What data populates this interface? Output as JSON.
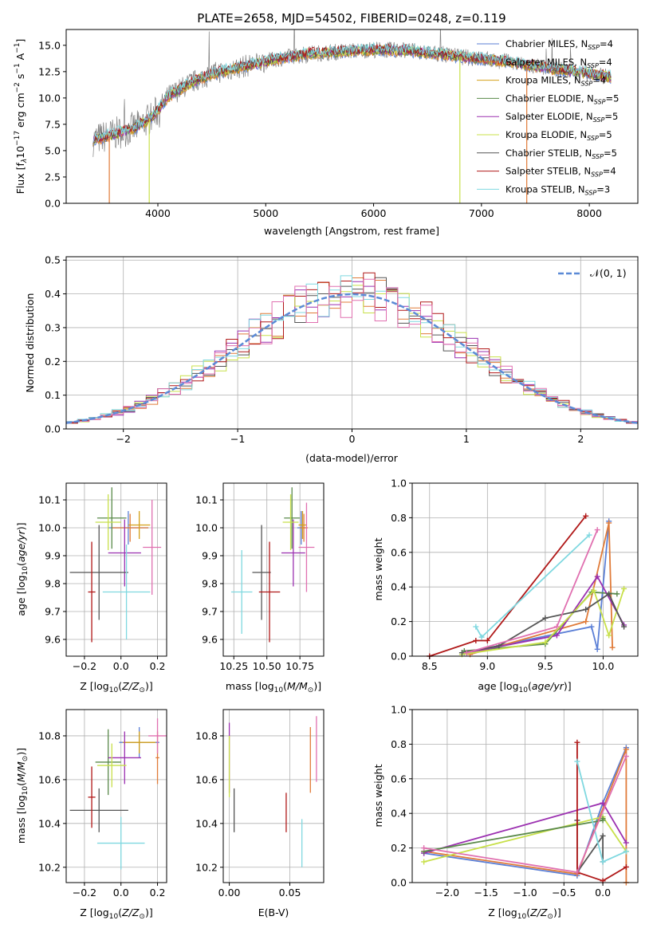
{
  "title": "PLATE=2658, MJD=54502, FIBERID=0248, z=0.119",
  "legend_models": [
    {
      "label": "Chabrier MILES, N$_{SSP}$=4",
      "color": "#5b7fd6"
    },
    {
      "label": "Salpeter MILES, N$_{SSP}$=4",
      "color": "#e07b39"
    },
    {
      "label": "Kroupa MILES, N$_{SSP}$=4",
      "color": "#d4a018"
    },
    {
      "label": "Chabrier ELODIE, N$_{SSP}$=5",
      "color": "#5a8a4a"
    },
    {
      "label": "Salpeter ELODIE, N$_{SSP}$=5",
      "color": "#9b30b0"
    },
    {
      "label": "Kroupa ELODIE, N$_{SSP}$=5",
      "color": "#c8e04a"
    },
    {
      "label": "Chabrier STELIB, N$_{SSP}$=5",
      "color": "#555555"
    },
    {
      "label": "Salpeter STELIB, N$_{SSP}$=4",
      "color": "#b01818"
    },
    {
      "label": "Kroupa STELIB, N$_{SSP}$=3",
      "color": "#7fd8e0"
    }
  ],
  "legend_text": [
    "Chabrier MILES, N",
    "Salpeter MILES, N",
    "Kroupa MILES, N",
    "Chabrier ELODIE, N",
    "Salpeter ELODIE, N",
    "Kroupa ELODIE, N",
    "Chabrier STELIB, N",
    "Salpeter STELIB, N",
    "Kroupa STELIB, N"
  ],
  "legend_sub": "SSP",
  "legend_n": [
    "=4",
    "=4",
    "=4",
    "=5",
    "=5",
    "=5",
    "=5",
    "=4",
    "=3"
  ],
  "chart_data": [
    {
      "type": "line",
      "name": "spectrum",
      "xlabel": "wavelength [Angstrom, rest frame]",
      "ylabel": "Flux [f",
      "ylabel_full": "Flux [fλ10^-17 erg cm^-2 s^-1 A^-1]",
      "xlim": [
        3150,
        8450
      ],
      "ylim": [
        0,
        16.5
      ],
      "xticks": [
        4000,
        5000,
        6000,
        7000,
        8000
      ],
      "yticks": [
        0.0,
        2.5,
        5.0,
        7.5,
        10.0,
        12.5,
        15.0
      ],
      "ytick_labels": [
        "0.0",
        "2.5",
        "5.0",
        "7.5",
        "10.0",
        "12.5",
        "15.0"
      ],
      "continuum_x": [
        3400,
        3600,
        3800,
        3950,
        4100,
        4300,
        4500,
        4800,
        5100,
        5400,
        5700,
        6000,
        6300,
        6600,
        6900,
        7200,
        7500,
        7800,
        8000,
        8200
      ],
      "continuum_y": [
        6.0,
        6.6,
        7.2,
        8.2,
        10.2,
        11.4,
        12.3,
        13.0,
        13.7,
        14.2,
        14.4,
        14.6,
        14.5,
        14.2,
        13.8,
        13.5,
        13.0,
        12.6,
        12.3,
        12.0
      ]
    },
    {
      "type": "line",
      "name": "residuals",
      "xlabel": "(data-model)/error",
      "ylabel": "Normed distribution",
      "xlim": [
        -2.5,
        2.5
      ],
      "ylim": [
        0,
        0.51
      ],
      "xticks": [
        -2,
        -1,
        0,
        1,
        2
      ],
      "xtick_labels": [
        "−2",
        "−1",
        "0",
        "1",
        "2"
      ],
      "yticks": [
        0.0,
        0.1,
        0.2,
        0.3,
        0.4,
        0.5
      ],
      "ytick_labels": [
        "0.0",
        "0.1",
        "0.2",
        "0.3",
        "0.4",
        "0.5"
      ],
      "legend": "𝒩(0, 1)",
      "normal_mu": 0,
      "normal_sigma": 1
    },
    {
      "type": "scatter",
      "name": "age-vs-Z",
      "xlabel": "Z [log",
      "ylabel": "age",
      "xlim": [
        -0.3,
        0.25
      ],
      "ylim": [
        9.54,
        10.16
      ],
      "xticks": [
        -0.2,
        0.0,
        0.2
      ],
      "xtick_labels": [
        "−0.2",
        "0.0",
        "0.2"
      ],
      "yticks": [
        9.6,
        9.7,
        9.8,
        9.9,
        10.0,
        10.1
      ],
      "ytick_labels": [
        "9.6",
        "9.7",
        "9.8",
        "9.9",
        "10.0",
        "10.1"
      ],
      "points": [
        {
          "x": 0.04,
          "y": 10.0,
          "xerr": 0.11,
          "yerr": 0.06,
          "color": "#5b7fd6"
        },
        {
          "x": 0.05,
          "y": 10.0,
          "xerr": 0.1,
          "yerr": 0.05,
          "color": "#e07b39"
        },
        {
          "x": 0.1,
          "y": 10.01,
          "xerr": 0.06,
          "yerr": 0.05,
          "color": "#d4a018"
        },
        {
          "x": -0.05,
          "y": 10.035,
          "xerr": 0.08,
          "yerr": 0.11,
          "color": "#5a8a4a"
        },
        {
          "x": 0.02,
          "y": 9.91,
          "xerr": 0.09,
          "yerr": 0.12,
          "color": "#9b30b0"
        },
        {
          "x": -0.07,
          "y": 10.02,
          "xerr": 0.07,
          "yerr": 0.1,
          "color": "#c8e04a"
        },
        {
          "x": -0.12,
          "y": 9.84,
          "xerr": 0.16,
          "yerr": 0.17,
          "color": "#555555"
        },
        {
          "x": -0.16,
          "y": 9.77,
          "xerr": 0.02,
          "yerr": 0.18,
          "color": "#b01818"
        },
        {
          "x": 0.03,
          "y": 9.77,
          "xerr": 0.13,
          "yerr": 0.17,
          "color": "#7fd8e0"
        },
        {
          "x": 0.17,
          "y": 9.93,
          "xerr": 0.05,
          "yerr": 0.17,
          "color": "#e070b0"
        }
      ]
    },
    {
      "type": "scatter",
      "name": "age-vs-mass",
      "xlabel": "mass [log",
      "xlim": [
        10.17,
        10.93
      ],
      "ylim": [
        9.54,
        10.16
      ],
      "xticks": [
        10.25,
        10.5,
        10.75
      ],
      "xtick_labels": [
        "10.25",
        "10.50",
        "10.75"
      ],
      "yticks": [
        9.6,
        9.7,
        9.8,
        9.9,
        10.0,
        10.1
      ],
      "ytick_labels": [
        "9.6",
        "9.7",
        "9.8",
        "9.9",
        "10.0",
        "10.1"
      ],
      "points": [
        {
          "x": 10.76,
          "y": 10.0,
          "xerr": 0.03,
          "yerr": 0.06,
          "color": "#5b7fd6"
        },
        {
          "x": 10.78,
          "y": 10.0,
          "xerr": 0.03,
          "yerr": 0.05,
          "color": "#e07b39"
        },
        {
          "x": 10.77,
          "y": 10.01,
          "xerr": 0.03,
          "yerr": 0.05,
          "color": "#d4a018"
        },
        {
          "x": 10.69,
          "y": 10.035,
          "xerr": 0.06,
          "yerr": 0.11,
          "color": "#5a8a4a"
        },
        {
          "x": 10.7,
          "y": 9.91,
          "xerr": 0.09,
          "yerr": 0.12,
          "color": "#9b30b0"
        },
        {
          "x": 10.68,
          "y": 10.02,
          "xerr": 0.06,
          "yerr": 0.1,
          "color": "#c8e04a"
        },
        {
          "x": 10.46,
          "y": 9.84,
          "xerr": 0.07,
          "yerr": 0.17,
          "color": "#555555"
        },
        {
          "x": 10.52,
          "y": 9.77,
          "xerr": 0.08,
          "yerr": 0.18,
          "color": "#b01818"
        },
        {
          "x": 10.31,
          "y": 9.77,
          "xerr": 0.08,
          "yerr": 0.15,
          "color": "#7fd8e0"
        },
        {
          "x": 10.8,
          "y": 9.93,
          "xerr": 0.06,
          "yerr": 0.16,
          "color": "#e070b0"
        }
      ]
    },
    {
      "type": "line",
      "name": "mass-weight-vs-age",
      "xlabel": "age",
      "ylabel": "mass weight",
      "xlim": [
        8.35,
        10.3
      ],
      "ylim": [
        0,
        1.0
      ],
      "xticks": [
        8.5,
        9.0,
        9.5,
        10.0
      ],
      "xtick_labels": [
        "8.5",
        "9.0",
        "9.5",
        "10.0"
      ],
      "yticks": [
        0.0,
        0.2,
        0.4,
        0.6,
        0.8,
        1.0
      ],
      "ytick_labels": [
        "0.0",
        "0.2",
        "0.4",
        "0.6",
        "0.8",
        "1.0"
      ],
      "series": [
        {
          "color": "#5b7fd6",
          "x": [
            8.8,
            9.9,
            9.95,
            10.05
          ],
          "y": [
            0.02,
            0.17,
            0.04,
            0.78
          ]
        },
        {
          "color": "#e07b39",
          "x": [
            8.85,
            9.85,
            10.05,
            10.08
          ],
          "y": [
            0.01,
            0.2,
            0.77,
            0.05
          ]
        },
        {
          "color": "#5a8a4a",
          "x": [
            8.8,
            9.5,
            9.9,
            10.12
          ],
          "y": [
            0.03,
            0.07,
            0.37,
            0.36
          ]
        },
        {
          "color": "#9b30b0",
          "x": [
            8.82,
            9.6,
            9.95,
            10.18
          ],
          "y": [
            0.02,
            0.12,
            0.46,
            0.18
          ]
        },
        {
          "color": "#c8e04a",
          "x": [
            8.78,
            9.5,
            9.92,
            10.05,
            10.18
          ],
          "y": [
            0.01,
            0.08,
            0.38,
            0.12,
            0.39
          ]
        },
        {
          "color": "#555555",
          "x": [
            8.78,
            9.1,
            9.5,
            9.85,
            10.05,
            10.18
          ],
          "y": [
            0.02,
            0.06,
            0.22,
            0.27,
            0.36,
            0.17
          ]
        },
        {
          "color": "#b01818",
          "x": [
            8.5,
            8.9,
            9.0,
            9.85
          ],
          "y": [
            0.0,
            0.09,
            0.09,
            0.81
          ]
        },
        {
          "color": "#7fd8e0",
          "x": [
            8.9,
            8.95,
            9.88
          ],
          "y": [
            0.17,
            0.11,
            0.7
          ]
        },
        {
          "color": "#e070b0",
          "x": [
            8.82,
            9.6,
            9.95
          ],
          "y": [
            0.02,
            0.17,
            0.73
          ]
        }
      ]
    },
    {
      "type": "scatter",
      "name": "mass-vs-Z",
      "xlabel": "Z [log",
      "ylabel": "mass [log",
      "xlim": [
        -0.3,
        0.25
      ],
      "ylim": [
        10.13,
        10.92
      ],
      "xticks": [
        -0.2,
        0.0,
        0.2
      ],
      "xtick_labels": [
        "−0.2",
        "0.0",
        "0.2"
      ],
      "yticks": [
        10.2,
        10.4,
        10.6,
        10.8
      ],
      "ytick_labels": [
        "10.2",
        "10.4",
        "10.6",
        "10.8"
      ],
      "points": [
        {
          "x": 0.1,
          "y": 10.77,
          "xerr": 0.11,
          "yerr": 0.07,
          "color": "#5b7fd6"
        },
        {
          "x": 0.2,
          "y": 10.7,
          "xerr": 0.01,
          "yerr": 0.12,
          "color": "#e07b39"
        },
        {
          "x": 0.1,
          "y": 10.77,
          "xerr": 0.09,
          "yerr": 0.05,
          "color": "#d4a018"
        },
        {
          "x": -0.07,
          "y": 10.68,
          "xerr": 0.07,
          "yerr": 0.15,
          "color": "#5a8a4a"
        },
        {
          "x": 0.02,
          "y": 10.7,
          "xerr": 0.09,
          "yerr": 0.12,
          "color": "#9b30b0"
        },
        {
          "x": -0.05,
          "y": 10.665,
          "xerr": 0.08,
          "yerr": 0.1,
          "color": "#c8e04a"
        },
        {
          "x": -0.12,
          "y": 10.46,
          "xerr": 0.16,
          "yerr": 0.1,
          "color": "#555555"
        },
        {
          "x": -0.16,
          "y": 10.52,
          "xerr": 0.02,
          "yerr": 0.14,
          "color": "#b01818"
        },
        {
          "x": 0.0,
          "y": 10.31,
          "xerr": 0.13,
          "yerr": 0.12,
          "color": "#7fd8e0"
        },
        {
          "x": 0.2,
          "y": 10.8,
          "xerr": 0.05,
          "yerr": 0.08,
          "color": "#e070b0"
        }
      ]
    },
    {
      "type": "scatter",
      "name": "mass-vs-EBV",
      "xlabel": "E(B-V)",
      "xlim": [
        -0.005,
        0.078
      ],
      "ylim": [
        10.13,
        10.92
      ],
      "xticks": [
        0.0,
        0.05
      ],
      "xtick_labels": [
        "0.00",
        "0.05"
      ],
      "yticks": [
        10.2,
        10.4,
        10.6,
        10.8
      ],
      "ytick_labels": [
        "10.2",
        "10.4",
        "10.6",
        "10.8"
      ],
      "points": [
        {
          "x": 0.0,
          "y": 10.7,
          "yerr": 0.16,
          "color": "#9b30b0"
        },
        {
          "x": 0.0,
          "y": 10.66,
          "yerr": 0.14,
          "color": "#c8e04a"
        },
        {
          "x": 0.004,
          "y": 10.46,
          "yerr": 0.1,
          "color": "#555555"
        },
        {
          "x": 0.047,
          "y": 10.45,
          "yerr": 0.09,
          "color": "#b01818"
        },
        {
          "x": 0.06,
          "y": 10.31,
          "yerr": 0.11,
          "color": "#7fd8e0"
        },
        {
          "x": 0.067,
          "y": 10.69,
          "yerr": 0.15,
          "color": "#e07b39"
        },
        {
          "x": 0.072,
          "y": 10.74,
          "yerr": 0.15,
          "color": "#e070b0"
        }
      ]
    },
    {
      "type": "line",
      "name": "mass-weight-vs-Z",
      "xlabel": "Z [log",
      "ylabel": "mass weight",
      "xlim": [
        -2.45,
        0.45
      ],
      "ylim": [
        0,
        1.0
      ],
      "xticks": [
        -2.0,
        -1.5,
        -1.0,
        -0.5,
        0.0
      ],
      "xtick_labels": [
        "−2.0",
        "−1.5",
        "−1.0",
        "−0.5",
        "0.0"
      ],
      "yticks": [
        0.0,
        0.2,
        0.4,
        0.6,
        0.8,
        1.0
      ],
      "ytick_labels": [
        "0.0",
        "0.2",
        "0.4",
        "0.6",
        "0.8",
        "1.0"
      ],
      "series": [
        {
          "color": "#5b7fd6",
          "x": [
            -2.3,
            -0.33,
            0.0,
            0.3
          ],
          "y": [
            0.17,
            0.04,
            0.46,
            0.78
          ]
        },
        {
          "color": "#e07b39",
          "x": [
            -2.3,
            -0.33,
            0.3,
            0.3
          ],
          "y": [
            0.18,
            0.05,
            0.77,
            0.0
          ]
        },
        {
          "color": "#9b30b0",
          "x": [
            -2.3,
            0.0,
            0.3
          ],
          "y": [
            0.17,
            0.46,
            0.23
          ]
        },
        {
          "color": "#c8e04a",
          "x": [
            -2.3,
            0.0,
            0.3
          ],
          "y": [
            0.12,
            0.38,
            0.18
          ]
        },
        {
          "color": "#5a8a4a",
          "x": [
            -2.3,
            0.0,
            0.0
          ],
          "y": [
            0.18,
            0.36,
            0.37
          ]
        },
        {
          "color": "#555555",
          "x": [
            -0.33,
            -0.33,
            0.0,
            0.0
          ],
          "y": [
            0.36,
            0.06,
            0.27,
            0.12
          ]
        },
        {
          "color": "#b01818",
          "x": [
            -0.33,
            -0.33,
            0.0,
            0.3
          ],
          "y": [
            0.81,
            0.06,
            0.01,
            0.09
          ]
        },
        {
          "color": "#7fd8e0",
          "x": [
            -0.33,
            0.0,
            0.3
          ],
          "y": [
            0.7,
            0.12,
            0.18
          ]
        },
        {
          "color": "#e070b0",
          "x": [
            -2.3,
            -0.33,
            0.3
          ],
          "y": [
            0.2,
            0.06,
            0.73
          ]
        }
      ]
    }
  ]
}
